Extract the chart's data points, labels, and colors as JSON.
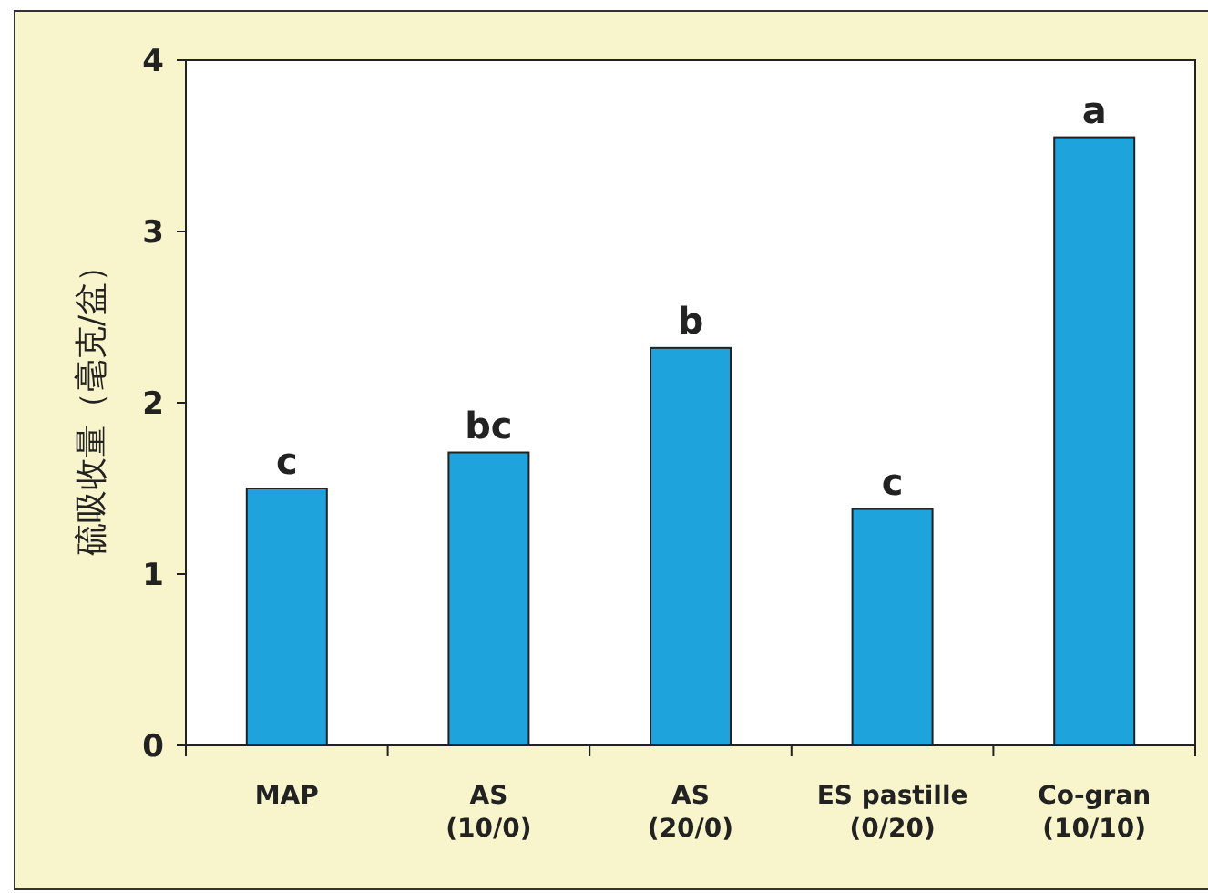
{
  "chart_data": {
    "type": "bar",
    "ylabel": "硫吸收量（毫克/盆）",
    "categories": [
      "MAP",
      "AS\n(10/0)",
      "AS\n(20/0)",
      "ES pastille\n(0/20)",
      "Co-gran\n(10/10)"
    ],
    "values": [
      1.5,
      1.71,
      2.32,
      1.38,
      3.55
    ],
    "color": "#1fa3dc",
    "ylim": [
      0,
      4
    ],
    "yticks": [
      0,
      1,
      2,
      3,
      4
    ],
    "annotations": [
      {
        "text": "c",
        "x": "MAP",
        "y": 1.5
      },
      {
        "text": "bc",
        "x": "AS\n(10/0)",
        "y": 1.71
      },
      {
        "text": "b",
        "x": "AS\n(20/0)",
        "y": 2.32
      },
      {
        "text": "c",
        "x": "ES pastille\n(0/20)",
        "y": 1.38
      },
      {
        "text": "a",
        "x": "Co-gran\n(10/10)",
        "y": 3.55
      }
    ]
  }
}
